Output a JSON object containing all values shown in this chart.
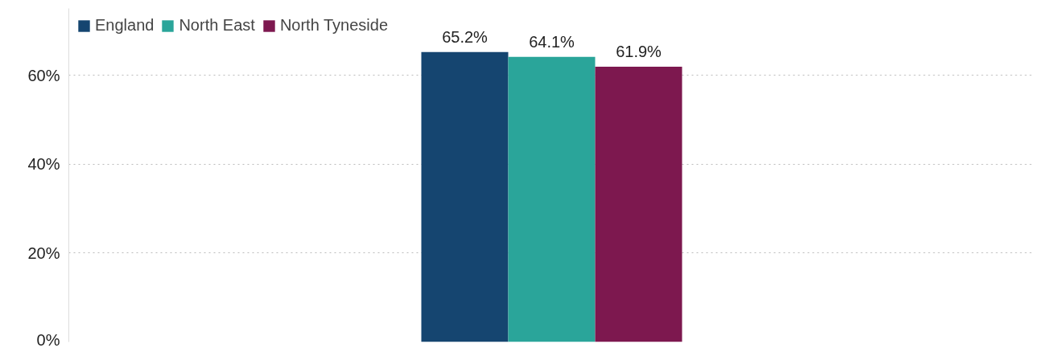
{
  "chart_data": {
    "type": "bar",
    "categories": [
      null
    ],
    "series": [
      {
        "name": "England",
        "color": "#154570",
        "values": [
          65.2
        ],
        "value_labels": [
          "65.2%"
        ]
      },
      {
        "name": "North East",
        "color": "#2aa59a",
        "values": [
          64.1
        ],
        "value_labels": [
          "64.1%"
        ]
      },
      {
        "name": "North Tyneside",
        "color": "#7d184f",
        "values": [
          61.9
        ],
        "value_labels": [
          "61.9%"
        ]
      }
    ],
    "yticks": [
      {
        "value": 0,
        "label": "0%"
      },
      {
        "value": 20,
        "label": "20%"
      },
      {
        "value": 40,
        "label": "40%"
      },
      {
        "value": 60,
        "label": "60%"
      }
    ],
    "ylim": [
      0,
      75
    ],
    "grid": "y",
    "legend": "top left",
    "tick_labels": "y"
  }
}
